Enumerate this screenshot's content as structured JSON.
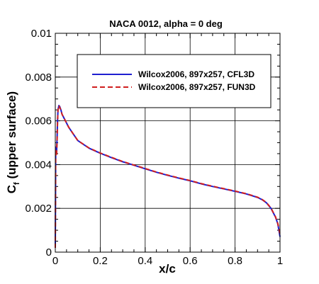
{
  "chart_data": {
    "type": "line",
    "title": "NACA 0012, alpha = 0 deg",
    "xlabel": "x/c",
    "ylabel_main": "C",
    "ylabel_sub": "f",
    "ylabel_tail": " (upper surface)",
    "xlim": [
      0,
      1
    ],
    "ylim": [
      0,
      0.01
    ],
    "xticks": [
      0,
      0.2,
      0.4,
      0.6,
      0.8,
      1
    ],
    "xtick_labels": [
      "0",
      "0.2",
      "0.4",
      "0.6",
      "0.8",
      "1"
    ],
    "yticks": [
      0,
      0.002,
      0.004,
      0.006,
      0.008,
      0.01
    ],
    "ytick_labels": [
      "0",
      "0.002",
      "0.004",
      "0.006",
      "0.008",
      "0.01"
    ],
    "grid": true,
    "legend_position": "top-right",
    "series": [
      {
        "name": "Wilcox2006, 897x257, CFL3D",
        "color": "#1f1fd0",
        "dash": "solid",
        "x": [
          0,
          0.002,
          0.004,
          0.006,
          0.008,
          0.01,
          0.012,
          0.016,
          0.02,
          0.025,
          0.03,
          0.04,
          0.05,
          0.06,
          0.08,
          0.1,
          0.15,
          0.2,
          0.25,
          0.3,
          0.35,
          0.4,
          0.45,
          0.5,
          0.55,
          0.6,
          0.65,
          0.7,
          0.75,
          0.8,
          0.85,
          0.9,
          0.92,
          0.94,
          0.96,
          0.97,
          0.98,
          0.99,
          0.995,
          1.0
        ],
        "y": [
          0.0002,
          0.0048,
          0.0045,
          0.0046,
          0.0052,
          0.006,
          0.0065,
          0.0067,
          0.00665,
          0.0065,
          0.0063,
          0.0061,
          0.0059,
          0.0057,
          0.0054,
          0.0051,
          0.00475,
          0.00452,
          0.00432,
          0.00413,
          0.00397,
          0.00381,
          0.00365,
          0.00351,
          0.00338,
          0.00326,
          0.00312,
          0.003,
          0.00289,
          0.00278,
          0.00266,
          0.0025,
          0.0024,
          0.00225,
          0.002,
          0.0018,
          0.0016,
          0.0013,
          0.001,
          0.0007
        ]
      },
      {
        "name": "Wilcox2006, 897x257, FUN3D",
        "color": "#d01f1f",
        "dash": "dashed",
        "x": [
          0,
          0.002,
          0.004,
          0.006,
          0.008,
          0.01,
          0.012,
          0.016,
          0.02,
          0.025,
          0.03,
          0.04,
          0.05,
          0.06,
          0.08,
          0.1,
          0.15,
          0.2,
          0.25,
          0.3,
          0.35,
          0.4,
          0.45,
          0.5,
          0.55,
          0.6,
          0.65,
          0.7,
          0.75,
          0.8,
          0.85,
          0.9,
          0.92,
          0.94,
          0.96,
          0.97,
          0.98,
          0.99,
          0.995,
          1.0
        ],
        "y": [
          0.0002,
          0.0047,
          0.0044,
          0.0045,
          0.0051,
          0.0059,
          0.0065,
          0.0067,
          0.0066,
          0.0065,
          0.0063,
          0.0061,
          0.0059,
          0.0057,
          0.0054,
          0.0051,
          0.00476,
          0.00453,
          0.00433,
          0.00414,
          0.00398,
          0.00382,
          0.00366,
          0.00352,
          0.00339,
          0.00327,
          0.00313,
          0.00301,
          0.0029,
          0.00279,
          0.00267,
          0.00251,
          0.00241,
          0.00226,
          0.00201,
          0.00181,
          0.00161,
          0.00131,
          0.0011,
          0.0008
        ]
      }
    ]
  }
}
